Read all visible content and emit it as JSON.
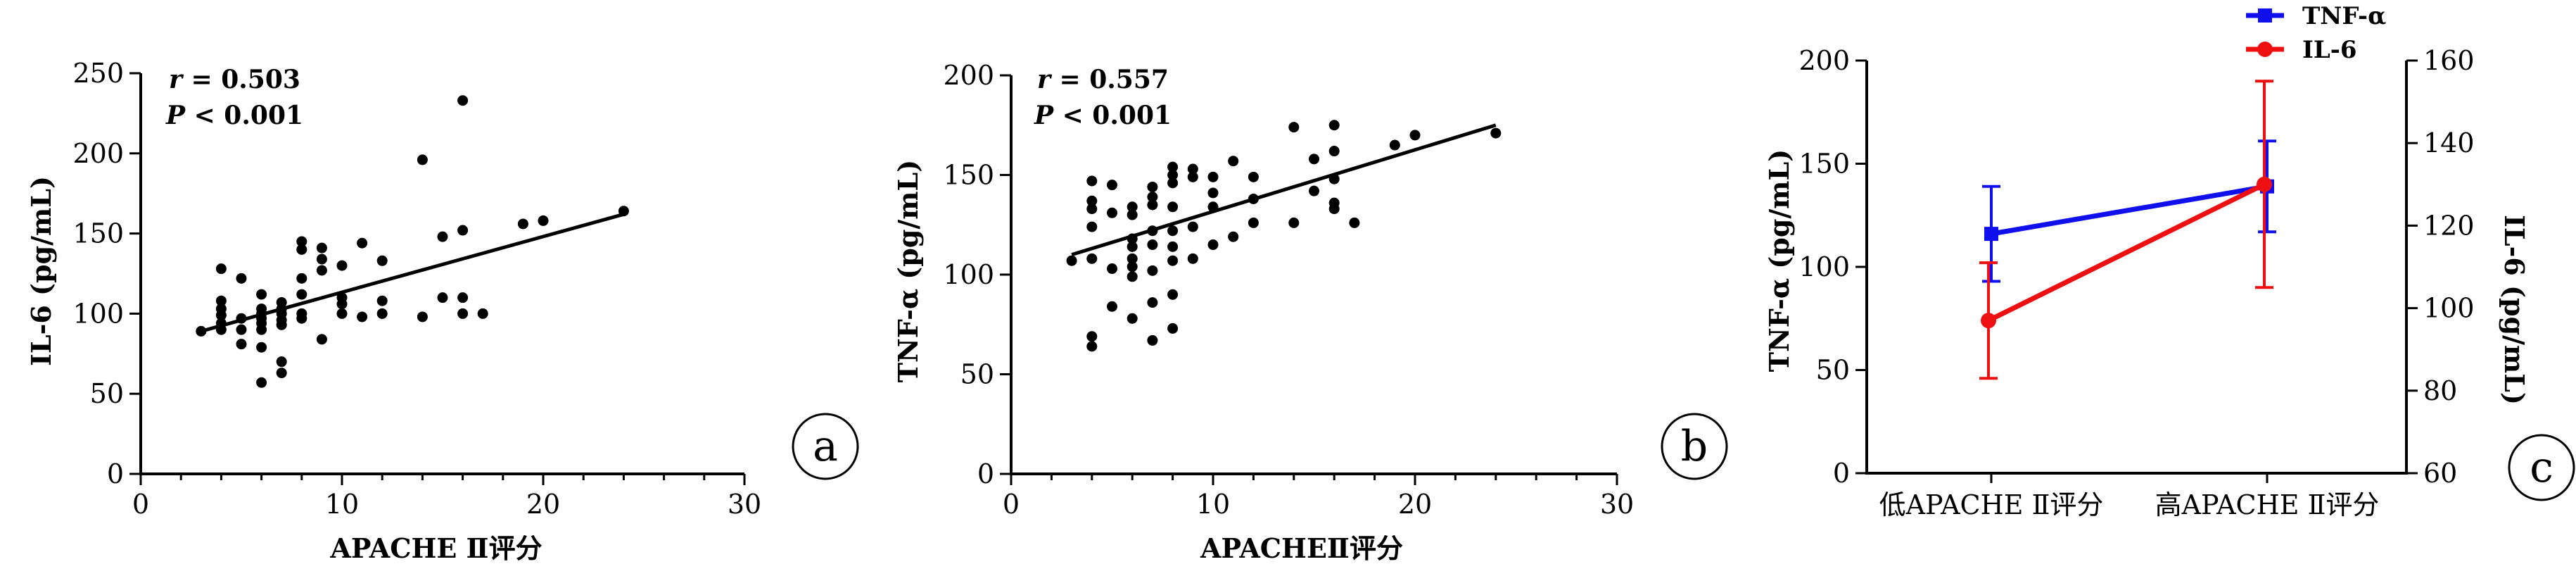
{
  "panels": {
    "a": {
      "letter": "a"
    },
    "b": {
      "letter": "b"
    },
    "c": {
      "letter": "c"
    }
  },
  "colors": {
    "tnf": "#1010ee",
    "il6": "#ee1010",
    "axis": "#000000"
  },
  "chart_data": [
    {
      "type": "scatter",
      "panel": "a",
      "xlabel": "APACHE Ⅱ评分",
      "ylabel": "IL-6 (pg/mL)",
      "xlim": [
        0,
        30
      ],
      "ylim": [
        0,
        250
      ],
      "xticks": [
        0,
        10,
        20,
        30
      ],
      "yticks": [
        0,
        50,
        100,
        150,
        200,
        250
      ],
      "annotations": {
        "r_label": "r",
        "r_text": " = 0.503",
        "p_label": "P",
        "p_text": " < 0.001"
      },
      "fit_line": [
        [
          3,
          89
        ],
        [
          24,
          162
        ]
      ],
      "points": [
        [
          3,
          89
        ],
        [
          4,
          90
        ],
        [
          4,
          94
        ],
        [
          4,
          99
        ],
        [
          4,
          103
        ],
        [
          4,
          108
        ],
        [
          4,
          128
        ],
        [
          5,
          81
        ],
        [
          5,
          90
        ],
        [
          5,
          97
        ],
        [
          5,
          122
        ],
        [
          6,
          57
        ],
        [
          6,
          79
        ],
        [
          6,
          90
        ],
        [
          6,
          94
        ],
        [
          6,
          97
        ],
        [
          6,
          100
        ],
        [
          6,
          103
        ],
        [
          6,
          112
        ],
        [
          7,
          63
        ],
        [
          7,
          70
        ],
        [
          7,
          93
        ],
        [
          7,
          96
        ],
        [
          7,
          100
        ],
        [
          7,
          103
        ],
        [
          7,
          107
        ],
        [
          8,
          97
        ],
        [
          8,
          100
        ],
        [
          8,
          112
        ],
        [
          8,
          122
        ],
        [
          8,
          140
        ],
        [
          8,
          145
        ],
        [
          9,
          84
        ],
        [
          9,
          127
        ],
        [
          9,
          134
        ],
        [
          9,
          141
        ],
        [
          10,
          100
        ],
        [
          10,
          106
        ],
        [
          10,
          110
        ],
        [
          10,
          130
        ],
        [
          11,
          98
        ],
        [
          11,
          144
        ],
        [
          12,
          100
        ],
        [
          12,
          108
        ],
        [
          12,
          133
        ],
        [
          14,
          98
        ],
        [
          14,
          196
        ],
        [
          15,
          110
        ],
        [
          15,
          148
        ],
        [
          16,
          100
        ],
        [
          16,
          110
        ],
        [
          16,
          152
        ],
        [
          16,
          233
        ],
        [
          17,
          100
        ],
        [
          19,
          156
        ],
        [
          20,
          158
        ],
        [
          24,
          164
        ]
      ]
    },
    {
      "type": "scatter",
      "panel": "b",
      "xlabel": "APACHEⅡ评分",
      "ylabel": "TNF-α (pg/mL)",
      "xlim": [
        0,
        30
      ],
      "ylim": [
        0,
        200
      ],
      "xticks": [
        0,
        10,
        20,
        30
      ],
      "yticks": [
        0,
        50,
        100,
        150,
        200
      ],
      "annotations": {
        "r_label": "r",
        "r_text": " = 0.557",
        "p_label": "P",
        "p_text": " < 0.001"
      },
      "fit_line": [
        [
          3,
          110
        ],
        [
          24,
          175
        ]
      ],
      "points": [
        [
          3,
          107
        ],
        [
          4,
          64
        ],
        [
          4,
          69
        ],
        [
          4,
          108
        ],
        [
          4,
          124
        ],
        [
          4,
          133
        ],
        [
          4,
          137
        ],
        [
          4,
          147
        ],
        [
          5,
          84
        ],
        [
          5,
          103
        ],
        [
          5,
          131
        ],
        [
          5,
          145
        ],
        [
          6,
          78
        ],
        [
          6,
          99
        ],
        [
          6,
          104
        ],
        [
          6,
          108
        ],
        [
          6,
          114
        ],
        [
          6,
          118
        ],
        [
          6,
          130
        ],
        [
          6,
          134
        ],
        [
          7,
          67
        ],
        [
          7,
          86
        ],
        [
          7,
          102
        ],
        [
          7,
          115
        ],
        [
          7,
          122
        ],
        [
          7,
          135
        ],
        [
          7,
          139
        ],
        [
          7,
          144
        ],
        [
          8,
          73
        ],
        [
          8,
          90
        ],
        [
          8,
          107
        ],
        [
          8,
          114
        ],
        [
          8,
          122
        ],
        [
          8,
          134
        ],
        [
          8,
          146
        ],
        [
          8,
          150
        ],
        [
          8,
          154
        ],
        [
          9,
          108
        ],
        [
          9,
          124
        ],
        [
          9,
          149
        ],
        [
          9,
          153
        ],
        [
          10,
          115
        ],
        [
          10,
          134
        ],
        [
          10,
          141
        ],
        [
          10,
          149
        ],
        [
          11,
          119
        ],
        [
          11,
          157
        ],
        [
          12,
          126
        ],
        [
          12,
          138
        ],
        [
          12,
          149
        ],
        [
          14,
          126
        ],
        [
          14,
          174
        ],
        [
          15,
          142
        ],
        [
          15,
          158
        ],
        [
          16,
          133
        ],
        [
          16,
          136
        ],
        [
          16,
          148
        ],
        [
          16,
          162
        ],
        [
          16,
          175
        ],
        [
          17,
          126
        ],
        [
          19,
          165
        ],
        [
          20,
          170
        ],
        [
          24,
          171
        ]
      ]
    },
    {
      "type": "line",
      "panel": "c",
      "categories": [
        "低APACHE Ⅱ评分",
        "高APACHE Ⅱ评分"
      ],
      "ylabel_left": "TNF-α (pg/mL)",
      "ylabel_right": "IL-6 (pg/mL)",
      "ylim_left": [
        0,
        200
      ],
      "ylim_right": [
        60,
        160
      ],
      "yticks_left": [
        0,
        50,
        100,
        150,
        200
      ],
      "yticks_right": [
        60,
        80,
        100,
        120,
        140,
        160
      ],
      "series": [
        {
          "name": "TNF-α",
          "axis": "left",
          "marker": "square",
          "values": [
            116,
            139
          ],
          "error": [
            23,
            22
          ]
        },
        {
          "name": "IL-6",
          "axis": "right",
          "marker": "circle",
          "values": [
            97,
            130
          ],
          "error": [
            14,
            25
          ]
        }
      ],
      "legend_position": "top-right"
    }
  ]
}
